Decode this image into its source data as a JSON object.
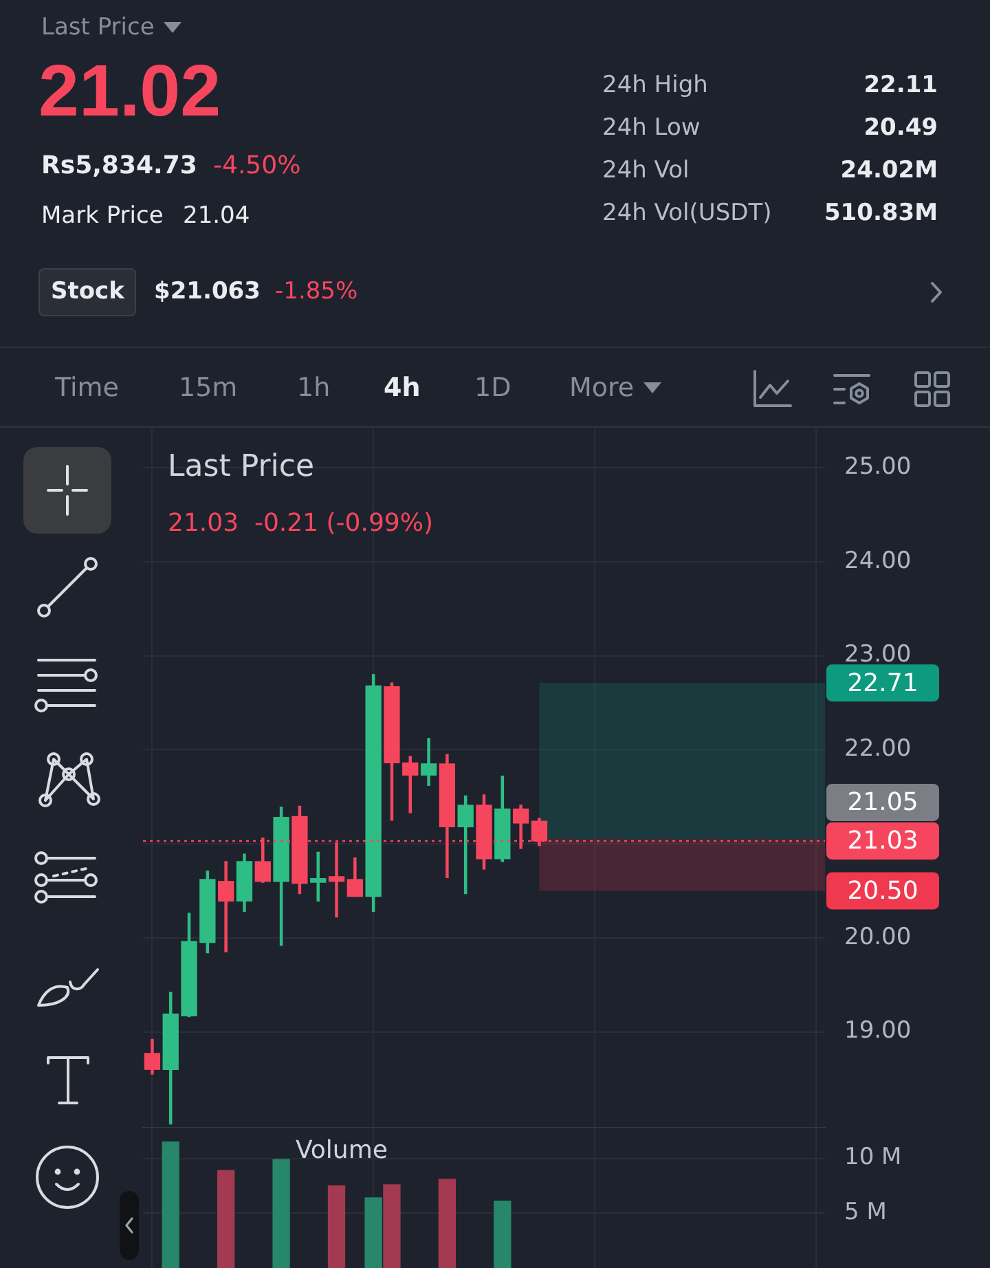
{
  "chart_data": [
    {
      "type": "other",
      "annotations": [
        "Last Price",
        "21.02",
        "Rs5,834.73",
        "-4.50%",
        "Mark Price",
        "21.04",
        "24h High",
        "22.11",
        "24h Low",
        "20.49",
        "24h Vol",
        "24.02M",
        "24h Vol(USDT)",
        "510.83M",
        "Stock",
        "$21.063",
        "-1.85%",
        "Time",
        "15m",
        "1h",
        "4h",
        "1D",
        "More"
      ]
    },
    {
      "type": "candlestick",
      "title": "Last Price",
      "subtitle": "21.03  -0.21 (-0.99%)",
      "categories": [
        null,
        null,
        null,
        null,
        null,
        null,
        null,
        null,
        null,
        null,
        null,
        null,
        null,
        null,
        null,
        null,
        null,
        null,
        null,
        null,
        null,
        null,
        null,
        null,
        null,
        null,
        null,
        null,
        null,
        null,
        null,
        null,
        null,
        null,
        null,
        null,
        null
      ],
      "ohlc": [
        [
          18.77,
          18.92,
          18.55,
          18.6
        ],
        [
          18.6,
          19.42,
          18.02,
          19.19
        ],
        [
          19.17,
          20.26,
          19.16,
          19.96
        ],
        [
          19.95,
          20.71,
          19.84,
          20.62
        ],
        [
          20.6,
          20.81,
          19.85,
          20.39
        ],
        [
          20.39,
          20.89,
          20.28,
          20.81
        ],
        [
          20.81,
          21.06,
          20.59,
          20.6
        ],
        [
          20.6,
          21.39,
          19.92,
          21.28
        ],
        [
          21.29,
          21.4,
          20.47,
          20.58
        ],
        [
          20.59,
          20.91,
          20.39,
          20.63
        ],
        [
          20.65,
          21.01,
          20.22,
          20.6
        ],
        [
          20.62,
          20.85,
          20.44,
          20.44
        ],
        [
          20.44,
          22.8,
          20.28,
          22.68
        ],
        [
          22.67,
          22.71,
          21.25,
          21.86
        ],
        [
          21.86,
          21.93,
          21.33,
          21.73
        ],
        [
          21.73,
          22.12,
          21.62,
          21.85
        ],
        [
          21.85,
          21.95,
          20.64,
          21.18
        ],
        [
          21.18,
          21.51,
          20.47,
          21.41
        ],
        [
          21.41,
          21.52,
          20.73,
          20.84
        ],
        [
          20.84,
          21.72,
          20.81,
          21.37
        ],
        [
          21.37,
          21.41,
          20.95,
          21.22
        ],
        [
          21.24,
          21.27,
          20.98,
          21.03
        ],
        null,
        null,
        null,
        null,
        null,
        null,
        null,
        null,
        null,
        null,
        null,
        null,
        null,
        null,
        null
      ],
      "colors": [
        "#f6465d",
        "#2ebd85",
        "#2ebd85",
        "#2ebd85",
        "#f6465d",
        "#2ebd85",
        "#f6465d",
        "#2ebd85",
        "#f6465d",
        "#2ebd85",
        "#f6465d",
        "#f6465d",
        "#2ebd85",
        "#f6465d",
        "#f6465d",
        "#2ebd85",
        "#f6465d",
        "#2ebd85",
        "#f6465d",
        "#2ebd85",
        "#f6465d",
        "#f6465d",
        null,
        null,
        null,
        null,
        null,
        null,
        null,
        null,
        null,
        null,
        null,
        null,
        null,
        null,
        null
      ],
      "ylim": [
        17.98,
        25.41
      ],
      "yticks": [
        {
          "value": 19,
          "label": "19.00"
        },
        {
          "value": 20,
          "label": "20.00"
        },
        {
          "value": 21,
          "label": null
        },
        {
          "value": 22,
          "label": "22.00"
        },
        {
          "value": 23,
          "label": "23.00"
        },
        {
          "value": 24,
          "label": "24.00"
        },
        {
          "value": 25,
          "label": "25.00"
        }
      ],
      "grid": true,
      "tick_labels": "y",
      "ref_lines": [
        {
          "axis": "y",
          "value": 21.03,
          "label": "21.03",
          "color": "#f6465d",
          "line_style": "dotted"
        }
      ],
      "bands": [
        {
          "axis": "y",
          "from": 21.05,
          "to": 22.71,
          "label": "22.71",
          "color": "#0e9a7e"
        },
        {
          "axis": "y",
          "from": 21.05,
          "to": 20.5,
          "label": "20.50",
          "color": "#f0384f"
        }
      ],
      "annotations": [
        "21.05"
      ]
    },
    {
      "type": "bar",
      "title": "Volume",
      "categories": [
        null,
        null,
        null,
        null,
        null,
        null,
        null,
        null,
        null,
        null,
        null,
        null,
        null,
        null,
        null,
        null,
        null,
        null,
        null,
        null,
        null,
        null,
        null,
        null,
        null,
        null,
        null,
        null,
        null,
        null,
        null,
        null,
        null,
        null,
        null,
        null,
        null
      ],
      "values": [
        null,
        11.5,
        null,
        null,
        8.9,
        null,
        null,
        9.9,
        null,
        null,
        7.5,
        null,
        6.4,
        7.6,
        null,
        null,
        8.1,
        null,
        null,
        6.1,
        null,
        null,
        null,
        null,
        null,
        null,
        null,
        null,
        null,
        null,
        null,
        null,
        null,
        null,
        null,
        null,
        null
      ],
      "colors": [
        null,
        "#26876b",
        null,
        null,
        "#a33a51",
        null,
        null,
        "#26876b",
        null,
        null,
        "#a33a51",
        null,
        "#26876b",
        "#a33a51",
        null,
        null,
        "#a33a51",
        null,
        null,
        "#26876b",
        null,
        null,
        null,
        null,
        null,
        null,
        null,
        null,
        null,
        null,
        null,
        null,
        null,
        null,
        null,
        null,
        null
      ],
      "ylim": [
        0,
        12.8
      ],
      "yticks": [
        {
          "value": 5,
          "label": "5 M"
        },
        {
          "value": 10,
          "label": "10 M"
        }
      ],
      "grid": true,
      "tick_labels": "y"
    }
  ]
}
